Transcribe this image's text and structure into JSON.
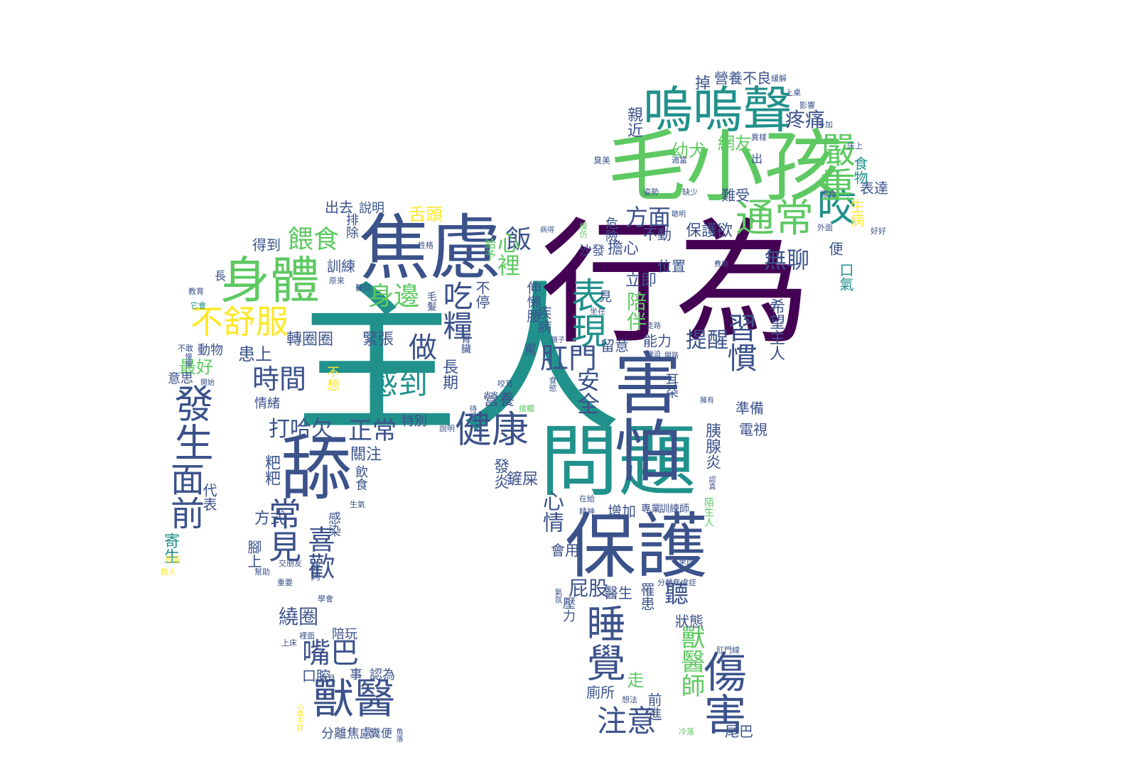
{
  "palette": {
    "dark_purple": "#440154",
    "indigo": "#3b528b",
    "teal": "#21918c",
    "green": "#5ec962",
    "yellow": "#fde725",
    "background": "#ffffff"
  },
  "shape": "dog-silhouette",
  "words": [
    {
      "text": "主人",
      "color": "teal"
    },
    {
      "text": "行為",
      "color": "dark_purple"
    },
    {
      "text": "毛小孩",
      "color": "green"
    },
    {
      "text": "問題",
      "color": "teal"
    },
    {
      "text": "焦慮",
      "color": "indigo"
    },
    {
      "text": "保護",
      "color": "indigo"
    },
    {
      "text": "舔",
      "color": "indigo"
    },
    {
      "text": "害怕",
      "color": "indigo"
    },
    {
      "text": "身體",
      "color": "green"
    },
    {
      "text": "嗚嗚聲",
      "color": "teal"
    },
    {
      "text": "通常",
      "color": "green"
    },
    {
      "text": "咬",
      "color": "teal"
    },
    {
      "text": "嚴重",
      "color": "green"
    },
    {
      "text": "健康",
      "color": "indigo"
    },
    {
      "text": "睡覺",
      "color": "indigo"
    },
    {
      "text": "傷害",
      "color": "indigo"
    },
    {
      "text": "獸醫",
      "color": "indigo"
    },
    {
      "text": "表現",
      "color": "teal"
    },
    {
      "text": "感到",
      "color": "teal"
    },
    {
      "text": "不舒服",
      "color": "yellow"
    },
    {
      "text": "發生",
      "color": "indigo"
    },
    {
      "text": "面前",
      "color": "indigo"
    },
    {
      "text": "常見",
      "color": "indigo"
    },
    {
      "text": "時間",
      "color": "indigo"
    },
    {
      "text": "喜歡",
      "color": "indigo"
    },
    {
      "text": "嘴巴",
      "color": "indigo"
    },
    {
      "text": "屁股",
      "color": "indigo"
    },
    {
      "text": "肛門",
      "color": "indigo"
    },
    {
      "text": "習慣",
      "color": "indigo"
    },
    {
      "text": "注意",
      "color": "indigo"
    },
    {
      "text": "安全",
      "color": "indigo"
    },
    {
      "text": "做",
      "color": "indigo"
    },
    {
      "text": "吃糧",
      "color": "indigo"
    },
    {
      "text": "正常",
      "color": "indigo"
    },
    {
      "text": "餵食",
      "color": "green"
    },
    {
      "text": "身邊",
      "color": "green"
    },
    {
      "text": "飯",
      "color": "indigo"
    },
    {
      "text": "方面",
      "color": "indigo"
    },
    {
      "text": "心裡",
      "color": "green"
    },
    {
      "text": "心情",
      "color": "indigo"
    },
    {
      "text": "打哈欠",
      "color": "indigo"
    },
    {
      "text": "提醒",
      "color": "indigo"
    },
    {
      "text": "陪伴",
      "color": "green"
    },
    {
      "text": "無聊",
      "color": "indigo"
    },
    {
      "text": "疼痛",
      "color": "indigo"
    },
    {
      "text": "幼犬",
      "color": "green"
    },
    {
      "text": "網友",
      "color": "green"
    },
    {
      "text": "聽",
      "color": "indigo"
    },
    {
      "text": "獸醫師",
      "color": "green"
    },
    {
      "text": "繞圈",
      "color": "indigo"
    },
    {
      "text": "患上",
      "color": "indigo"
    },
    {
      "text": "最好",
      "color": "green"
    },
    {
      "text": "轉圈圈",
      "color": "indigo"
    },
    {
      "text": "緊張",
      "color": "indigo"
    },
    {
      "text": "營養",
      "color": "indigo"
    },
    {
      "text": "舌頭",
      "color": "yellow"
    },
    {
      "text": "保護欲",
      "color": "indigo"
    },
    {
      "text": "難受",
      "color": "indigo"
    },
    {
      "text": "表達",
      "color": "indigo"
    },
    {
      "text": "生病",
      "color": "yellow"
    },
    {
      "text": "營養不良",
      "color": "indigo"
    },
    {
      "text": "得到",
      "color": "indigo"
    },
    {
      "text": "出去",
      "color": "indigo"
    },
    {
      "text": "說明",
      "color": "indigo"
    },
    {
      "text": "伸懶腰",
      "color": "indigo"
    },
    {
      "text": "疾病",
      "color": "indigo"
    },
    {
      "text": "擔心",
      "color": "indigo"
    },
    {
      "text": "沙發",
      "color": "indigo"
    },
    {
      "text": "危險",
      "color": "indigo"
    },
    {
      "text": "立即",
      "color": "indigo"
    },
    {
      "text": "位置",
      "color": "indigo"
    },
    {
      "text": "不動",
      "color": "indigo"
    },
    {
      "text": "能力",
      "color": "indigo"
    },
    {
      "text": "狀態",
      "color": "indigo"
    },
    {
      "text": "希望主人",
      "color": "indigo"
    },
    {
      "text": "胰腺炎",
      "color": "indigo"
    },
    {
      "text": "電視",
      "color": "indigo"
    },
    {
      "text": "準備",
      "color": "indigo"
    },
    {
      "text": "醫生",
      "color": "indigo"
    },
    {
      "text": "增加",
      "color": "indigo"
    },
    {
      "text": "專業",
      "color": "indigo"
    },
    {
      "text": "訓練師",
      "color": "indigo"
    },
    {
      "text": "陌生人",
      "color": "green"
    },
    {
      "text": "走",
      "color": "green"
    },
    {
      "text": "前進",
      "color": "indigo"
    },
    {
      "text": "廁所",
      "color": "indigo"
    },
    {
      "text": "尾巴",
      "color": "indigo"
    },
    {
      "text": "壓力",
      "color": "indigo"
    },
    {
      "text": "罹患",
      "color": "indigo"
    },
    {
      "text": "發炎",
      "color": "indigo"
    },
    {
      "text": "特別",
      "color": "indigo"
    },
    {
      "text": "關注",
      "color": "indigo"
    },
    {
      "text": "飲食",
      "color": "indigo"
    },
    {
      "text": "方式",
      "color": "indigo"
    },
    {
      "text": "粑粑",
      "color": "indigo"
    },
    {
      "text": "情緒",
      "color": "indigo"
    },
    {
      "text": "寄生",
      "color": "teal"
    },
    {
      "text": "代表",
      "color": "indigo"
    },
    {
      "text": "意思",
      "color": "indigo"
    },
    {
      "text": "動物",
      "color": "indigo"
    },
    {
      "text": "腳上",
      "color": "indigo"
    },
    {
      "text": "能夠",
      "color": "indigo"
    },
    {
      "text": "感染",
      "color": "indigo"
    },
    {
      "text": "陪玩",
      "color": "indigo"
    },
    {
      "text": "口腔",
      "color": "indigo"
    },
    {
      "text": "認為",
      "color": "indigo"
    },
    {
      "text": "事",
      "color": "indigo"
    },
    {
      "text": "分離焦慮",
      "color": "indigo"
    },
    {
      "text": "糞便",
      "color": "indigo"
    },
    {
      "text": "長期",
      "color": "indigo"
    },
    {
      "text": "不停",
      "color": "indigo"
    },
    {
      "text": "不想",
      "color": "yellow"
    },
    {
      "text": "訓練",
      "color": "indigo"
    },
    {
      "text": "排除",
      "color": "indigo"
    },
    {
      "text": "給予",
      "color": "green"
    },
    {
      "text": "會用",
      "color": "indigo"
    },
    {
      "text": "便",
      "color": "indigo"
    },
    {
      "text": "口氣",
      "color": "teal"
    },
    {
      "text": "食物",
      "color": "teal"
    },
    {
      "text": "出",
      "color": "indigo"
    },
    {
      "text": "親近",
      "color": "indigo"
    },
    {
      "text": "掉",
      "color": "indigo"
    },
    {
      "text": "長",
      "color": "indigo"
    },
    {
      "text": "罵",
      "color": "indigo"
    },
    {
      "text": "鏟屎",
      "color": "indigo"
    },
    {
      "text": "留意",
      "color": "indigo"
    },
    {
      "text": "耳朵",
      "color": "indigo"
    },
    {
      "text": "毛髮",
      "color": "indigo"
    },
    {
      "text": "腎臟",
      "color": "indigo"
    },
    {
      "text": "見",
      "color": "indigo"
    }
  ],
  "tiny_words": [
    {
      "text": "緩解",
      "color": "indigo"
    },
    {
      "text": "上桌",
      "color": "indigo"
    },
    {
      "text": "影響",
      "color": "indigo"
    },
    {
      "text": "多加",
      "color": "indigo"
    },
    {
      "text": "異樣",
      "color": "indigo"
    },
    {
      "text": "床上",
      "color": "indigo"
    },
    {
      "text": "臭美",
      "color": "indigo"
    },
    {
      "text": "適當",
      "color": "indigo"
    },
    {
      "text": "姿勢",
      "color": "indigo"
    },
    {
      "text": "缺少",
      "color": "indigo"
    },
    {
      "text": "零食",
      "color": "indigo"
    },
    {
      "text": "聰明",
      "color": "indigo"
    },
    {
      "text": "病得",
      "color": "indigo"
    },
    {
      "text": "模仿",
      "color": "green"
    },
    {
      "text": "外面",
      "color": "indigo"
    },
    {
      "text": "好好",
      "color": "indigo"
    },
    {
      "text": "費用",
      "color": "indigo"
    },
    {
      "text": "教育",
      "color": "indigo"
    },
    {
      "text": "它會",
      "color": "teal"
    },
    {
      "text": "不敢",
      "color": "indigo"
    },
    {
      "text": "開始",
      "color": "indigo"
    },
    {
      "text": "慢慢",
      "color": "indigo"
    },
    {
      "text": "醫院",
      "color": "indigo"
    },
    {
      "text": "原來",
      "color": "indigo"
    },
    {
      "text": "性格",
      "color": "indigo"
    },
    {
      "text": "坐在",
      "color": "indigo"
    },
    {
      "text": "走路",
      "color": "indigo"
    },
    {
      "text": "鏡子",
      "color": "indigo"
    },
    {
      "text": "強迫",
      "color": "indigo"
    },
    {
      "text": "開路",
      "color": "indigo"
    },
    {
      "text": "食慾",
      "color": "indigo"
    },
    {
      "text": "咬耳",
      "color": "indigo"
    },
    {
      "text": "接觸",
      "color": "green"
    },
    {
      "text": "說明",
      "color": "indigo"
    },
    {
      "text": "待遇",
      "color": "indigo"
    },
    {
      "text": "生氣",
      "color": "indigo"
    },
    {
      "text": "在給",
      "color": "indigo"
    },
    {
      "text": "精神",
      "color": "indigo"
    },
    {
      "text": "分離焦慮症",
      "color": "indigo"
    },
    {
      "text": "東西",
      "color": "indigo"
    },
    {
      "text": "周圍",
      "color": "yellow"
    },
    {
      "text": "教人",
      "color": "yellow"
    },
    {
      "text": "幫助",
      "color": "indigo"
    },
    {
      "text": "交朋友",
      "color": "indigo"
    },
    {
      "text": "重要",
      "color": "indigo"
    },
    {
      "text": "學會",
      "color": "indigo"
    },
    {
      "text": "看見",
      "color": "indigo"
    },
    {
      "text": "上床",
      "color": "indigo"
    },
    {
      "text": "裡面",
      "color": "indigo"
    },
    {
      "text": "心情不好",
      "color": "yellow"
    },
    {
      "text": "想法",
      "color": "indigo"
    },
    {
      "text": "肛門線",
      "color": "indigo"
    },
    {
      "text": "冷落",
      "color": "green"
    },
    {
      "text": "角落",
      "color": "indigo"
    },
    {
      "text": "氣氛",
      "color": "indigo"
    },
    {
      "text": "認真",
      "color": "indigo"
    },
    {
      "text": "擁有",
      "color": "indigo"
    }
  ]
}
